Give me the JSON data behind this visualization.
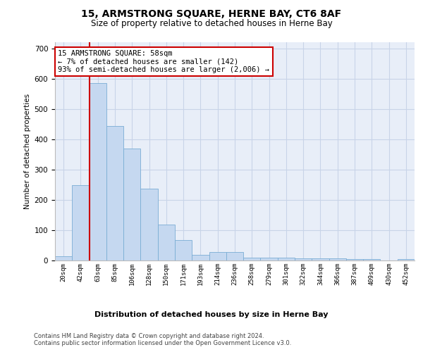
{
  "title": "15, ARMSTRONG SQUARE, HERNE BAY, CT6 8AF",
  "subtitle": "Size of property relative to detached houses in Herne Bay",
  "xlabel": "Distribution of detached houses by size in Herne Bay",
  "ylabel": "Number of detached properties",
  "bar_color": "#c5d8f0",
  "bar_edge_color": "#7aadd4",
  "grid_color": "#c8d4e8",
  "plot_bg_color": "#e8eef8",
  "bins": [
    "20sqm",
    "42sqm",
    "63sqm",
    "85sqm",
    "106sqm",
    "128sqm",
    "150sqm",
    "171sqm",
    "193sqm",
    "214sqm",
    "236sqm",
    "258sqm",
    "279sqm",
    "301sqm",
    "322sqm",
    "344sqm",
    "366sqm",
    "387sqm",
    "409sqm",
    "430sqm",
    "452sqm"
  ],
  "values": [
    15,
    248,
    585,
    443,
    370,
    237,
    118,
    68,
    18,
    28,
    28,
    10,
    10,
    10,
    6,
    6,
    6,
    5,
    5,
    0,
    5
  ],
  "red_line_x": 2,
  "annotation_line1": "15 ARMSTRONG SQUARE: 58sqm",
  "annotation_line2": "← 7% of detached houses are smaller (142)",
  "annotation_line3": "93% of semi-detached houses are larger (2,006) →",
  "annotation_box_color": "#ffffff",
  "annotation_border_color": "#cc0000",
  "ylim": [
    0,
    720
  ],
  "yticks": [
    0,
    100,
    200,
    300,
    400,
    500,
    600,
    700
  ],
  "footer1": "Contains HM Land Registry data © Crown copyright and database right 2024.",
  "footer2": "Contains public sector information licensed under the Open Government Licence v3.0."
}
